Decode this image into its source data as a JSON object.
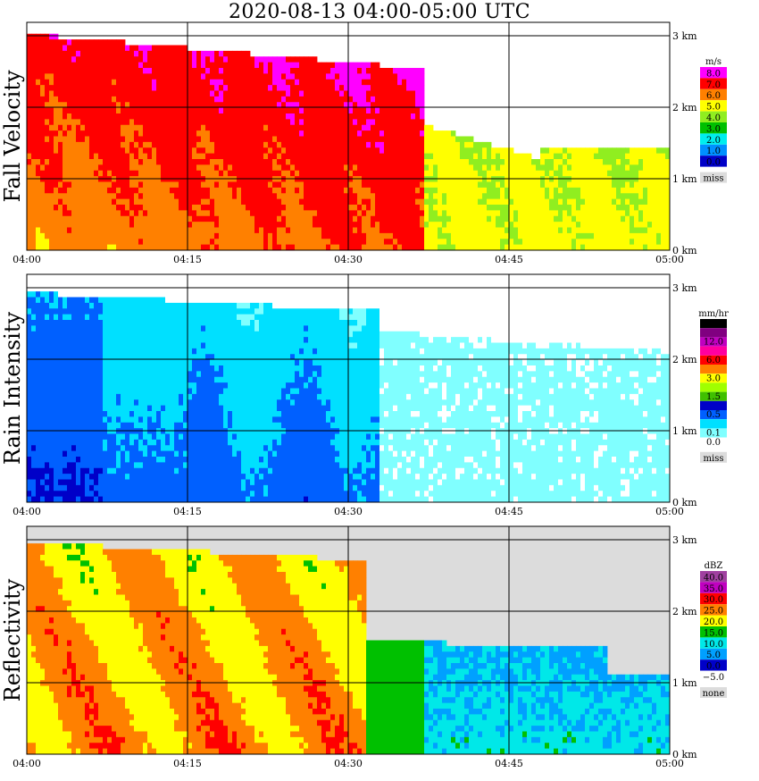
{
  "title": "2020-08-13   04:00-05:00 UTC",
  "chart_data": [
    {
      "type": "heatmap",
      "ylabel": "Fall Velocity",
      "legend_units": "m/s",
      "x_ticks": [
        "04:00",
        "04:15",
        "04:30",
        "04:45",
        "05:00"
      ],
      "y_ticks": [
        "0 km",
        "1 km",
        "2 km",
        "3 km"
      ],
      "legend": [
        {
          "label": "8.0",
          "color": "#ff00ff"
        },
        {
          "label": "7.0",
          "color": "#ff0000"
        },
        {
          "label": "6.0",
          "color": "#ff8000"
        },
        {
          "label": "5.0",
          "color": "#ffff00"
        },
        {
          "label": "4.0",
          "color": "#90ee20"
        },
        {
          "label": "3.0",
          "color": "#00c000"
        },
        {
          "label": "2.0",
          "color": "#00eeee"
        },
        {
          "label": "1.0",
          "color": "#0090ff"
        },
        {
          "label": "0.0",
          "color": "#0000c8"
        },
        {
          "label": "miss",
          "color": "#dcdcdc"
        }
      ]
    },
    {
      "type": "heatmap",
      "ylabel": "Rain Intensity",
      "legend_units": "mm/hr",
      "x_ticks": [
        "04:00",
        "04:15",
        "04:30",
        "04:45",
        "05:00"
      ],
      "y_ticks": [
        "0 km",
        "1 km",
        "2 km",
        "3 km"
      ],
      "legend": [
        {
          "label": "48.0",
          "color": "#000000"
        },
        {
          "label": "",
          "color": "#800080"
        },
        {
          "label": "12.0",
          "color": "#c000c0"
        },
        {
          "label": "",
          "color": "#ff00a0"
        },
        {
          "label": "6.0",
          "color": "#ff0000"
        },
        {
          "label": "",
          "color": "#ff8000"
        },
        {
          "label": "3.0",
          "color": "#ffff00"
        },
        {
          "label": "",
          "color": "#a0ff00"
        },
        {
          "label": "1.5",
          "color": "#40c000"
        },
        {
          "label": "",
          "color": "#0000c8"
        },
        {
          "label": "0.5",
          "color": "#0060ff"
        },
        {
          "label": "",
          "color": "#00e0ff"
        },
        {
          "label": "0.1",
          "color": "#80ffff"
        },
        {
          "label": "0.0",
          "color": "#ffffff"
        },
        {
          "label": "miss",
          "color": "#dcdcdc"
        }
      ]
    },
    {
      "type": "heatmap",
      "ylabel": "Reflectivity",
      "legend_units": "dBZ",
      "x_ticks": [
        "04:00",
        "04:15",
        "04:30",
        "04:45",
        "05:00"
      ],
      "y_ticks": [
        "0 km",
        "1 km",
        "2 km",
        "3 km"
      ],
      "legend": [
        {
          "label": "40.0",
          "color": "#a040a0"
        },
        {
          "label": "35.0",
          "color": "#c000c0"
        },
        {
          "label": "30.0",
          "color": "#ff0000"
        },
        {
          "label": "25.0",
          "color": "#ff8000"
        },
        {
          "label": "20.0",
          "color": "#ffff00"
        },
        {
          "label": "15.0",
          "color": "#00c000"
        },
        {
          "label": "10.0",
          "color": "#00e8e8"
        },
        {
          "label": "5.0",
          "color": "#00a0ff"
        },
        {
          "label": "0.0",
          "color": "#0000c8"
        },
        {
          "label": "−5.0",
          "color": "#ffffff"
        },
        {
          "label": "none",
          "color": "#dcdcdc"
        }
      ]
    }
  ]
}
